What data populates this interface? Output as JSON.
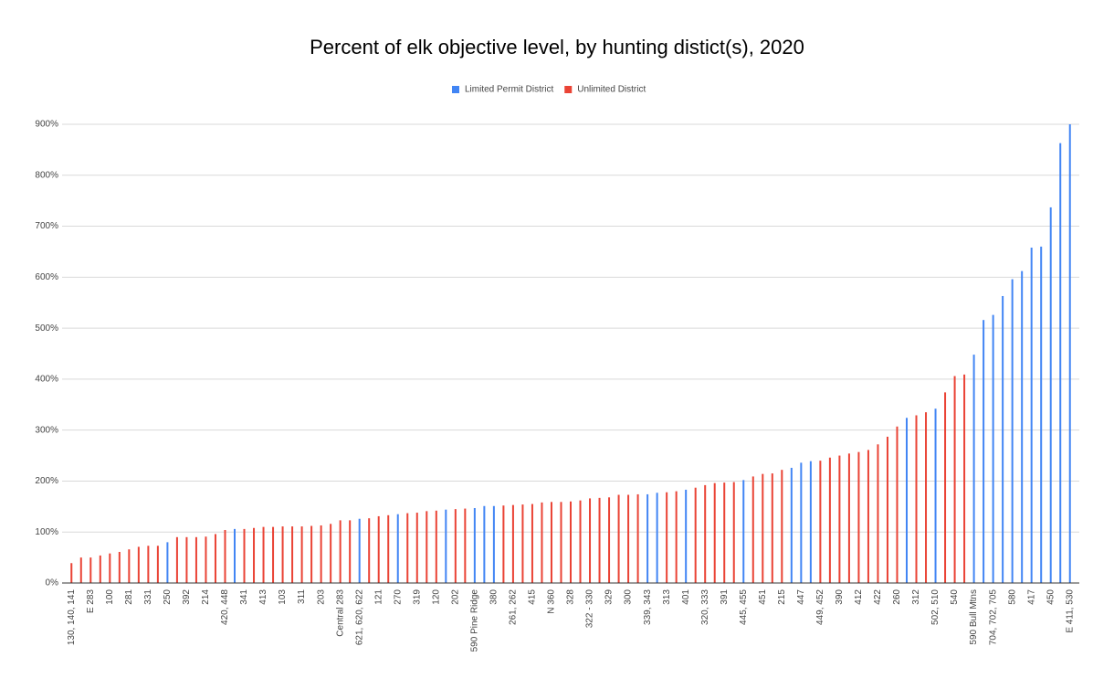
{
  "chart_data": {
    "type": "bar",
    "title": "Percent of elk objective level, by hunting distict(s), 2020",
    "categories": [
      "130, 140, 141",
      null,
      "E 283",
      null,
      "100",
      null,
      "281",
      null,
      "331",
      null,
      "250",
      null,
      "392",
      null,
      "214",
      null,
      "420, 448",
      null,
      "341",
      null,
      "413",
      null,
      "103",
      null,
      "311",
      null,
      "203",
      null,
      "Central 283",
      null,
      "621, 620, 622",
      null,
      "121",
      null,
      "270",
      null,
      "319",
      null,
      "120",
      null,
      "202",
      null,
      "590 Pine Ridge",
      null,
      "380",
      null,
      "261, 262",
      null,
      "415",
      null,
      "N 360",
      null,
      "328",
      null,
      "322 - 330",
      null,
      "329",
      null,
      "300",
      null,
      "339, 343",
      null,
      "313",
      null,
      "401",
      null,
      "320, 333",
      null,
      "391",
      null,
      "445, 455",
      null,
      "451",
      null,
      "215",
      null,
      "447",
      null,
      "449, 452",
      null,
      "390",
      null,
      "412",
      null,
      "422",
      null,
      "260",
      null,
      "312",
      null,
      "502, 510",
      null,
      "540",
      null,
      "590 Bull Mtns",
      null,
      "704, 702, 705",
      null,
      "580",
      null,
      "417",
      null,
      "450",
      null,
      "E 411, 530"
    ],
    "series": [
      {
        "name": "Limited Permit District",
        "color": "#4285f4",
        "values": [
          null,
          null,
          null,
          null,
          null,
          null,
          null,
          null,
          null,
          null,
          80,
          null,
          null,
          null,
          null,
          null,
          null,
          106,
          null,
          null,
          null,
          null,
          null,
          null,
          null,
          null,
          null,
          null,
          null,
          null,
          126,
          null,
          null,
          null,
          135,
          null,
          null,
          null,
          null,
          144,
          null,
          null,
          147,
          151,
          151,
          null,
          null,
          null,
          null,
          null,
          null,
          null,
          null,
          null,
          null,
          null,
          null,
          null,
          null,
          null,
          174,
          177,
          null,
          null,
          183,
          null,
          null,
          null,
          null,
          null,
          202,
          null,
          null,
          null,
          null,
          226,
          236,
          239,
          null,
          null,
          null,
          null,
          null,
          null,
          null,
          null,
          null,
          324,
          null,
          null,
          342,
          null,
          null,
          null,
          448,
          516,
          526,
          563,
          596,
          612,
          658,
          660,
          737,
          863,
          900
        ]
      },
      {
        "name": "Unlimited District",
        "color": "#ea4335",
        "values": [
          39,
          50,
          50,
          54,
          58,
          61,
          66,
          71,
          73,
          73,
          null,
          90,
          90,
          90,
          91,
          96,
          104,
          null,
          106,
          108,
          110,
          110,
          111,
          111,
          111,
          112,
          113,
          116,
          123,
          123,
          null,
          127,
          131,
          133,
          null,
          137,
          138,
          141,
          142,
          null,
          145,
          146,
          null,
          null,
          null,
          152,
          153,
          154,
          155,
          158,
          159,
          159,
          160,
          162,
          166,
          167,
          168,
          173,
          173,
          174,
          null,
          null,
          178,
          180,
          null,
          187,
          192,
          196,
          197,
          198,
          null,
          209,
          214,
          215,
          222,
          null,
          null,
          null,
          240,
          246,
          250,
          254,
          257,
          261,
          272,
          287,
          307,
          null,
          329,
          335,
          null,
          374,
          406,
          409,
          null,
          null,
          null,
          null,
          null,
          null,
          null,
          null,
          null,
          null,
          null
        ]
      }
    ],
    "ylim": [
      0,
      900
    ],
    "yticks": [
      {
        "value": 0,
        "label": "0%"
      },
      {
        "value": 100,
        "label": "100%"
      },
      {
        "value": 200,
        "label": "200%"
      },
      {
        "value": 300,
        "label": "300%"
      },
      {
        "value": 400,
        "label": "400%"
      },
      {
        "value": 500,
        "label": "500%"
      },
      {
        "value": 600,
        "label": "600%"
      },
      {
        "value": 700,
        "label": "700%"
      },
      {
        "value": 800,
        "label": "800%"
      },
      {
        "value": 900,
        "label": "900%"
      }
    ],
    "grid": true,
    "legend": "top"
  }
}
